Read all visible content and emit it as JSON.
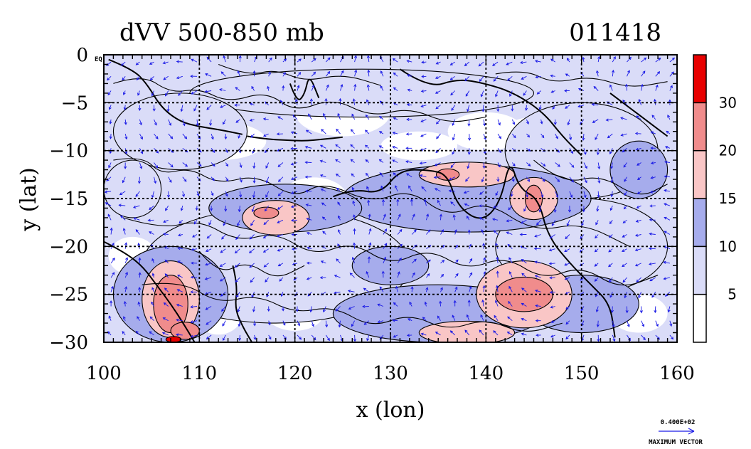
{
  "header": {
    "title": "dVV 500-850 mb",
    "date_code": "011418"
  },
  "corner_label": "EQ",
  "chart_data": {
    "type": "heatmap",
    "title": "dVV 500-850 mb",
    "xlabel": "x (lon)",
    "ylabel": "y (lat)",
    "xlim": [
      100,
      160
    ],
    "ylim": [
      -30,
      0
    ],
    "x_ticks": [
      "100",
      "110",
      "120",
      "130",
      "140",
      "150",
      "160"
    ],
    "x_tick_values": [
      100,
      110,
      120,
      130,
      140,
      150,
      160
    ],
    "y_ticks": [
      "0",
      "−5",
      "−10",
      "−15",
      "−20",
      "−25",
      "−30"
    ],
    "y_tick_values": [
      0,
      -5,
      -10,
      -15,
      -20,
      -25,
      -30
    ],
    "grid": true,
    "colorbar": {
      "levels": [
        0,
        5,
        10,
        15,
        20,
        30,
        35
      ],
      "labels": [
        "5",
        "10",
        "15",
        "20",
        "30"
      ],
      "colors": [
        "#ffffff",
        "#dadcf8",
        "#a6acec",
        "#f9c6c6",
        "#f08c8c",
        "#e80000"
      ]
    },
    "patches": [
      {
        "level": 1,
        "cx": 127,
        "cy": -4,
        "rx": 18,
        "ry": 2.5
      },
      {
        "level": 1,
        "cx": 108,
        "cy": -8,
        "rx": 7,
        "ry": 4
      },
      {
        "level": 1,
        "cx": 150,
        "cy": -10,
        "rx": 8,
        "ry": 5
      },
      {
        "level": 1,
        "cx": 118,
        "cy": -22,
        "rx": 14,
        "ry": 6
      },
      {
        "level": 1,
        "cx": 150,
        "cy": -20,
        "rx": 9,
        "ry": 5
      },
      {
        "level": 1,
        "cx": 103,
        "cy": -14,
        "rx": 3,
        "ry": 3
      },
      {
        "level": 2,
        "cx": 138,
        "cy": -15,
        "rx": 13,
        "ry": 3.5
      },
      {
        "level": 2,
        "cx": 119,
        "cy": -16,
        "rx": 8,
        "ry": 2.5
      },
      {
        "level": 2,
        "cx": 135,
        "cy": -27,
        "rx": 11,
        "ry": 3
      },
      {
        "level": 2,
        "cx": 107,
        "cy": -25,
        "rx": 6,
        "ry": 5
      },
      {
        "level": 2,
        "cx": 150,
        "cy": -26,
        "rx": 6,
        "ry": 3
      },
      {
        "level": 2,
        "cx": 130,
        "cy": -22,
        "rx": 4,
        "ry": 2
      },
      {
        "level": 2,
        "cx": 156,
        "cy": -12,
        "rx": 3,
        "ry": 3
      },
      {
        "level": 3,
        "cx": 138,
        "cy": -12.5,
        "rx": 5,
        "ry": 1.3
      },
      {
        "level": 3,
        "cx": 145,
        "cy": -15,
        "rx": 2.5,
        "ry": 2.2
      },
      {
        "level": 3,
        "cx": 118,
        "cy": -17,
        "rx": 3.5,
        "ry": 1.8
      },
      {
        "level": 3,
        "cx": 144,
        "cy": -25,
        "rx": 5,
        "ry": 3.5
      },
      {
        "level": 3,
        "cx": 107,
        "cy": -25.5,
        "rx": 3,
        "ry": 4
      },
      {
        "level": 3,
        "cx": 138,
        "cy": -29,
        "rx": 5,
        "ry": 1.2
      },
      {
        "level": 4,
        "cx": 136,
        "cy": -12.5,
        "rx": 1.2,
        "ry": 0.6
      },
      {
        "level": 4,
        "cx": 145,
        "cy": -15,
        "rx": 0.9,
        "ry": 1.4
      },
      {
        "level": 4,
        "cx": 117,
        "cy": -16.5,
        "rx": 1.3,
        "ry": 0.6
      },
      {
        "level": 4,
        "cx": 144,
        "cy": -25,
        "rx": 3,
        "ry": 1.8
      },
      {
        "level": 4,
        "cx": 107,
        "cy": -26,
        "rx": 1.8,
        "ry": 3
      },
      {
        "level": 4,
        "cx": 108.5,
        "cy": -28.8,
        "rx": 1.5,
        "ry": 0.9
      },
      {
        "level": 5,
        "cx": 107.3,
        "cy": -29.7,
        "rx": 0.8,
        "ry": 0.3
      }
    ],
    "coastlines": [
      [
        [
          100.5,
          -0.5
        ],
        [
          103,
          -1.5
        ],
        [
          104.5,
          -3
        ],
        [
          106,
          -5.5
        ],
        [
          108,
          -7
        ],
        [
          110,
          -7.5
        ],
        [
          112,
          -7.8
        ],
        [
          114.5,
          -8.3
        ]
      ],
      [
        [
          115,
          -8.5
        ],
        [
          117,
          -8.8
        ],
        [
          119,
          -8.9
        ],
        [
          121,
          -9.0
        ],
        [
          123,
          -8.8
        ],
        [
          125,
          -8.6
        ]
      ],
      [
        [
          119.5,
          -3
        ],
        [
          120.2,
          -5
        ],
        [
          121,
          -4.2
        ],
        [
          121.5,
          -2
        ],
        [
          122.5,
          -4.5
        ]
      ],
      [
        [
          131,
          -1.5
        ],
        [
          134,
          -3.5
        ],
        [
          137,
          -2.5
        ],
        [
          140,
          -3
        ],
        [
          143,
          -4
        ],
        [
          146,
          -6
        ],
        [
          148,
          -8.5
        ],
        [
          150,
          -10.5
        ]
      ],
      [
        [
          153,
          -4
        ],
        [
          155,
          -5.5
        ],
        [
          157,
          -7
        ],
        [
          159,
          -8.5
        ]
      ],
      [
        [
          124,
          -14.8
        ],
        [
          126,
          -14
        ],
        [
          129,
          -14.5
        ],
        [
          131,
          -12
        ],
        [
          134,
          -12
        ],
        [
          136,
          -12.5
        ],
        [
          137,
          -15.8
        ],
        [
          139.5,
          -17.5
        ],
        [
          141.5,
          -15.5
        ],
        [
          142.5,
          -10.8
        ],
        [
          143.5,
          -14
        ],
        [
          145.5,
          -15
        ],
        [
          146.5,
          -19
        ],
        [
          149,
          -22
        ],
        [
          151,
          -24
        ],
        [
          153,
          -26
        ],
        [
          153.5,
          -29.5
        ]
      ],
      [
        [
          100,
          -19.5
        ],
        [
          102,
          -20.5
        ],
        [
          104,
          -22
        ],
        [
          105.5,
          -24
        ],
        [
          107,
          -26
        ],
        [
          108.3,
          -28
        ],
        [
          109.5,
          -30
        ]
      ],
      [
        [
          113.5,
          -22
        ],
        [
          114,
          -24
        ],
        [
          113.7,
          -26.5
        ],
        [
          114.6,
          -28.5
        ],
        [
          115.5,
          -30
        ]
      ]
    ],
    "contour_lines": [
      [
        [
          101,
          -3
        ],
        [
          104,
          -2
        ],
        [
          107,
          -4
        ],
        [
          110,
          -3.5
        ],
        [
          113,
          -5
        ],
        [
          117,
          -3.8
        ],
        [
          120,
          -6
        ],
        [
          124,
          -4.5
        ],
        [
          128,
          -6.5
        ],
        [
          132,
          -5.5
        ],
        [
          136,
          -7.2
        ],
        [
          140,
          -6.5
        ]
      ],
      [
        [
          101,
          -11
        ],
        [
          104,
          -10.5
        ],
        [
          106,
          -12.5
        ],
        [
          109,
          -11.8
        ],
        [
          112,
          -13.5
        ],
        [
          116,
          -12.5
        ],
        [
          120,
          -15
        ],
        [
          123,
          -13.2
        ],
        [
          128,
          -15.5
        ],
        [
          132,
          -14
        ],
        [
          136,
          -17
        ],
        [
          140,
          -15.2
        ],
        [
          145,
          -18.5
        ],
        [
          150,
          -17.5
        ],
        [
          155,
          -20
        ]
      ],
      [
        [
          102,
          -17
        ],
        [
          106,
          -18.2
        ],
        [
          110,
          -17.2
        ],
        [
          114,
          -19.5
        ],
        [
          118,
          -18.5
        ],
        [
          122,
          -21
        ],
        [
          126,
          -19.5
        ],
        [
          130,
          -22
        ],
        [
          134,
          -20.2
        ],
        [
          138,
          -22.5
        ],
        [
          142,
          -21
        ],
        [
          146,
          -23.5
        ],
        [
          150,
          -22
        ],
        [
          154,
          -24.5
        ],
        [
          158,
          -23
        ]
      ],
      [
        [
          104,
          -24
        ],
        [
          108,
          -23.5
        ],
        [
          112,
          -26
        ],
        [
          116,
          -25
        ],
        [
          120,
          -27
        ],
        [
          124,
          -26.2
        ],
        [
          128,
          -28.5
        ],
        [
          132,
          -27
        ],
        [
          136,
          -28.8
        ],
        [
          140,
          -27.5
        ],
        [
          144,
          -29.2
        ],
        [
          148,
          -28
        ]
      ],
      [
        [
          141,
          -2
        ],
        [
          144,
          -1.5
        ],
        [
          147,
          -3
        ],
        [
          151,
          -2.2
        ],
        [
          155,
          -3.5
        ],
        [
          159,
          -2.8
        ]
      ],
      [
        [
          112,
          -1
        ],
        [
          115,
          -2.2
        ],
        [
          118,
          -1.5
        ],
        [
          121,
          -2.8
        ],
        [
          125,
          -2
        ],
        [
          129,
          -3.2
        ]
      ],
      [
        [
          145,
          -11
        ],
        [
          148,
          -13.5
        ],
        [
          152,
          -12.5
        ],
        [
          156,
          -15
        ],
        [
          159,
          -13.5
        ]
      ],
      [
        [
          110,
          -20.5
        ],
        [
          112,
          -23
        ],
        [
          115,
          -21.5
        ],
        [
          118,
          -23.5
        ],
        [
          121,
          -22
        ]
      ]
    ],
    "vectors": {
      "rows": 20,
      "cols": 40,
      "colour": "#1a1ae6"
    },
    "vector_key": {
      "value_label": "0.400E+02",
      "caption": "MAXIMUM VECTOR"
    }
  }
}
